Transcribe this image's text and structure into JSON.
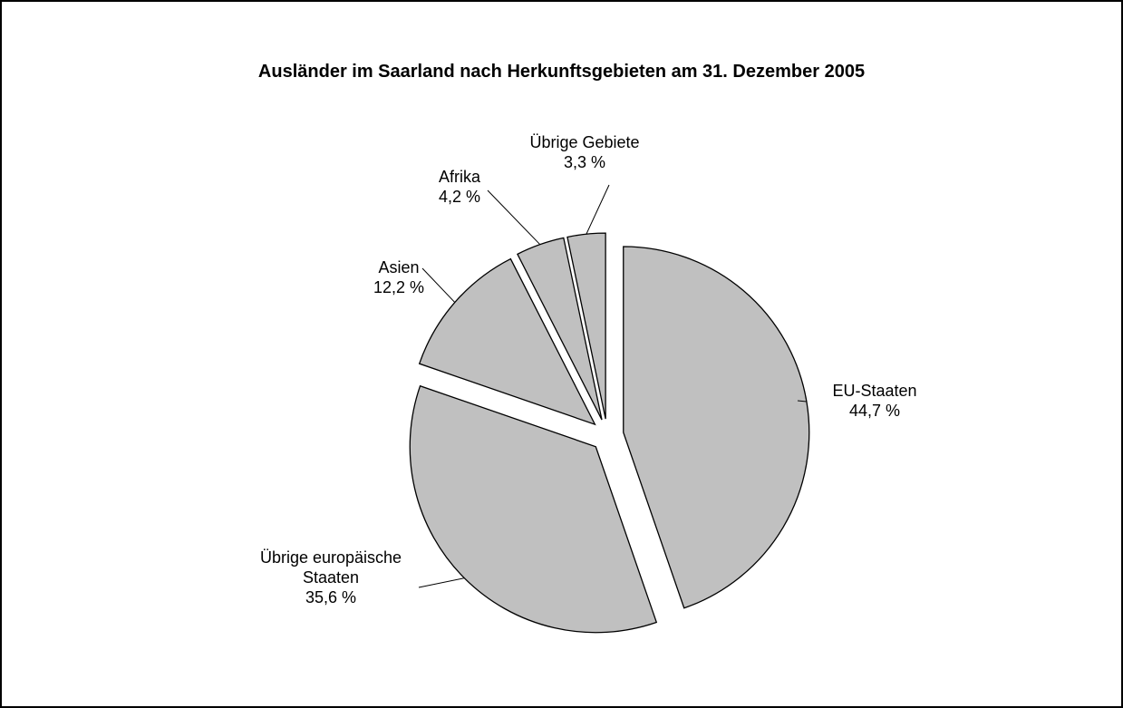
{
  "chart_data": {
    "type": "pie",
    "title": "Ausländer im Saarland nach Herkunftsgebieten am 31. Dezember 2005",
    "categories": [
      "EU-Staaten",
      "Übrige europäische Staaten",
      "Asien",
      "Afrika",
      "Übrige Gebiete"
    ],
    "values": [
      44.7,
      35.6,
      12.2,
      4.2,
      3.3
    ],
    "value_labels": [
      "44,7 %",
      "35,6 %",
      "12,2 %",
      "4,2 %",
      "3,3 %"
    ],
    "color": "#c0c0c0"
  }
}
